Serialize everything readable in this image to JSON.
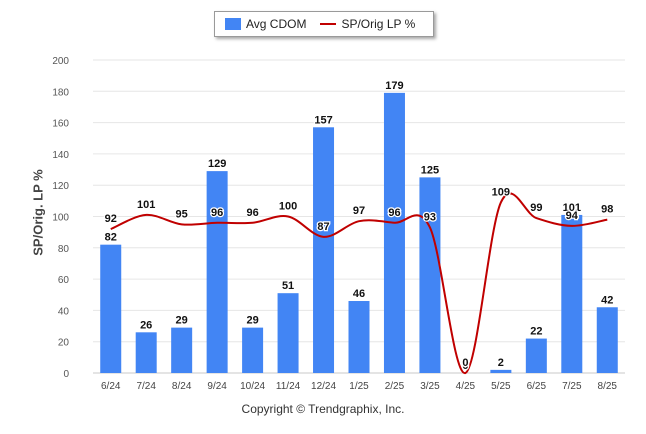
{
  "legend": {
    "bar_label": "Avg CDOM",
    "line_label": "SP/Orig LP %"
  },
  "copyright": "Copyright © Trendgraphix, Inc.",
  "chart_data": {
    "type": "bar",
    "categories": [
      "6/24",
      "7/24",
      "8/24",
      "9/24",
      "10/24",
      "11/24",
      "12/24",
      "1/25",
      "2/25",
      "3/25",
      "4/25",
      "5/25",
      "6/25",
      "7/25",
      "8/25"
    ],
    "ylabel": "SP/Orig. LP %",
    "ylim": [
      0,
      200
    ],
    "yticks": [
      0,
      20,
      40,
      60,
      80,
      100,
      120,
      140,
      160,
      180,
      200
    ],
    "grid": true,
    "legend_position": "top-center",
    "series": [
      {
        "name": "Avg CDOM",
        "type": "bar",
        "color": "#4285f4",
        "values": [
          82,
          26,
          29,
          129,
          29,
          51,
          157,
          46,
          179,
          125,
          0,
          2,
          22,
          101,
          42
        ]
      },
      {
        "name": "SP/Orig LP %",
        "type": "line",
        "color": "#c00000",
        "values": [
          92,
          101,
          95,
          96,
          96,
          100,
          87,
          97,
          96,
          93,
          0,
          109,
          99,
          94,
          98
        ]
      }
    ]
  }
}
